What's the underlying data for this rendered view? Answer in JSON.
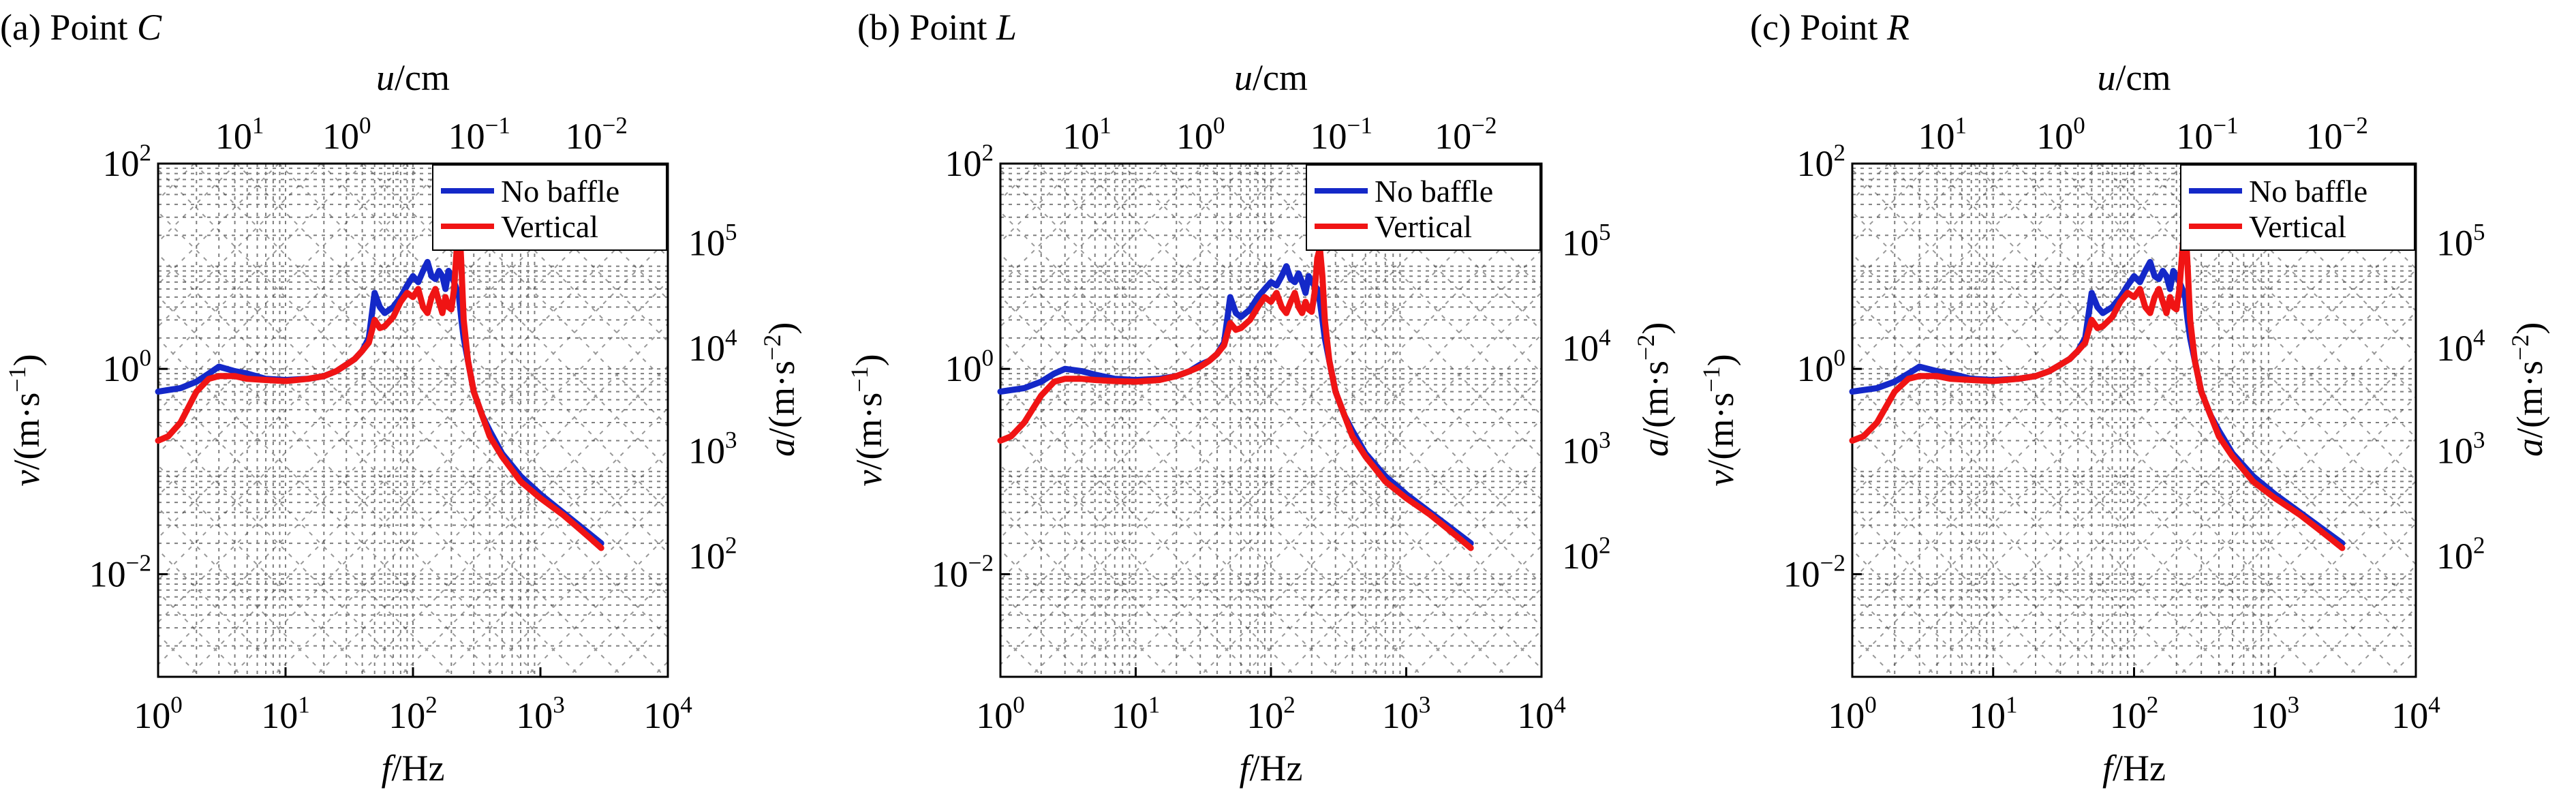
{
  "chart_data": [
    {
      "type": "line",
      "panel_label": "(a) Point ",
      "panel_point": "C",
      "xlabel_var": "f",
      "xlabel_unit": "/Hz",
      "ylabel_var": "v",
      "ylabel_unit": "/(m·s",
      "ylabel_exp": "−1",
      "ylabel_close": ")",
      "y2label_var": "a",
      "y2label_unit": "/(m·s",
      "y2label_exp": "−2",
      "y2label_close": ")",
      "x2label_var": "u",
      "x2label_unit": "/cm",
      "x_scale": "log",
      "y_scale": "log",
      "xlim": [
        1,
        10000
      ],
      "ylim": [
        0.001,
        100
      ],
      "x_ticks": [
        "10^0",
        "10^1",
        "10^2",
        "10^3",
        "10^4"
      ],
      "y_ticks": [
        "10^2",
        "10^0",
        "10^-2"
      ],
      "x2_ticks": [
        "10^1",
        "10^0",
        "10^-1",
        "10^-2"
      ],
      "y2_ticks": [
        "10^5",
        "10^4",
        "10^3",
        "10^2"
      ],
      "grid": true,
      "legend_position": "top-right",
      "series": [
        {
          "name": "No baffle",
          "color": "#1428c8",
          "x": [
            1,
            1.5,
            2,
            2.5,
            3,
            4,
            5,
            7,
            10,
            15,
            20,
            25,
            30,
            35,
            40,
            45,
            50,
            55,
            60,
            70,
            80,
            90,
            100,
            110,
            120,
            130,
            140,
            150,
            160,
            170,
            180,
            190,
            200,
            210,
            220,
            230,
            240,
            250,
            270,
            300,
            350,
            400,
            500,
            700,
            1000,
            1500,
            2000,
            2500,
            3000
          ],
          "y": [
            0.6,
            0.65,
            0.75,
            0.9,
            1.05,
            0.95,
            0.9,
            0.8,
            0.78,
            0.8,
            0.85,
            0.95,
            1.1,
            1.25,
            1.5,
            2.0,
            5.5,
            4.0,
            3.5,
            4.0,
            5.0,
            6.5,
            8.0,
            7.0,
            9.0,
            11.0,
            8.0,
            7.5,
            9.0,
            8.0,
            6.0,
            9.0,
            8.0,
            7.0,
            6.0,
            5.0,
            3.0,
            2.0,
            1.2,
            0.6,
            0.35,
            0.25,
            0.15,
            0.09,
            0.06,
            0.04,
            0.03,
            0.024,
            0.02
          ]
        },
        {
          "name": "Vertical",
          "color": "#f01414",
          "x": [
            1,
            1.2,
            1.5,
            2,
            2.5,
            3,
            4,
            5,
            7,
            10,
            15,
            20,
            25,
            30,
            35,
            40,
            45,
            50,
            55,
            60,
            70,
            80,
            90,
            100,
            110,
            120,
            130,
            140,
            150,
            160,
            170,
            180,
            190,
            200,
            210,
            220,
            230,
            240,
            250,
            270,
            300,
            350,
            400,
            500,
            700,
            1000,
            1500,
            2000,
            2500,
            3000
          ],
          "y": [
            0.2,
            0.22,
            0.3,
            0.6,
            0.8,
            0.85,
            0.85,
            0.8,
            0.78,
            0.76,
            0.8,
            0.85,
            0.95,
            1.1,
            1.25,
            1.5,
            1.8,
            3.0,
            2.5,
            2.6,
            3.2,
            4.5,
            5.5,
            5.0,
            6.0,
            4.0,
            3.5,
            5.0,
            6.0,
            4.5,
            3.5,
            5.0,
            4.0,
            3.8,
            6.0,
            14.0,
            30.0,
            10.0,
            3.0,
            1.2,
            0.6,
            0.35,
            0.22,
            0.14,
            0.08,
            0.055,
            0.038,
            0.028,
            0.022,
            0.018
          ]
        }
      ]
    },
    {
      "type": "line",
      "panel_label": "(b) Point ",
      "panel_point": "L",
      "xlabel_var": "f",
      "xlabel_unit": "/Hz",
      "ylabel_var": "v",
      "ylabel_unit": "/(m·s",
      "ylabel_exp": "−1",
      "ylabel_close": ")",
      "y2label_var": "a",
      "y2label_unit": "/(m·s",
      "y2label_exp": "−2",
      "y2label_close": ")",
      "x2label_var": "u",
      "x2label_unit": "/cm",
      "x_scale": "log",
      "y_scale": "log",
      "xlim": [
        1,
        10000
      ],
      "ylim": [
        0.001,
        100
      ],
      "x_ticks": [
        "10^0",
        "10^1",
        "10^2",
        "10^3",
        "10^4"
      ],
      "y_ticks": [
        "10^2",
        "10^0",
        "10^-2"
      ],
      "x2_ticks": [
        "10^1",
        "10^0",
        "10^-1",
        "10^-2"
      ],
      "y2_ticks": [
        "10^5",
        "10^4",
        "10^3",
        "10^2"
      ],
      "grid": true,
      "legend_position": "top-right",
      "series": [
        {
          "name": "No baffle",
          "color": "#1428c8",
          "x": [
            1,
            1.5,
            2,
            2.5,
            3,
            4,
            5,
            7,
            10,
            15,
            20,
            25,
            30,
            35,
            40,
            45,
            50,
            55,
            60,
            70,
            80,
            90,
            100,
            110,
            120,
            130,
            140,
            150,
            160,
            170,
            180,
            190,
            200,
            210,
            220,
            230,
            240,
            250,
            270,
            300,
            350,
            400,
            500,
            700,
            1000,
            1500,
            2000,
            2500,
            3000
          ],
          "y": [
            0.6,
            0.65,
            0.75,
            0.9,
            1.0,
            0.95,
            0.88,
            0.8,
            0.78,
            0.8,
            0.85,
            0.95,
            1.1,
            1.2,
            1.4,
            1.8,
            5.0,
            3.5,
            3.2,
            3.8,
            5.0,
            6.0,
            7.0,
            6.5,
            8.0,
            10.0,
            7.5,
            7.0,
            8.5,
            7.0,
            5.5,
            8.0,
            7.0,
            6.5,
            6.0,
            4.5,
            3.0,
            2.0,
            1.2,
            0.6,
            0.35,
            0.25,
            0.15,
            0.09,
            0.06,
            0.04,
            0.03,
            0.024,
            0.02
          ]
        },
        {
          "name": "Vertical",
          "color": "#f01414",
          "x": [
            1,
            1.2,
            1.5,
            2,
            2.5,
            3,
            4,
            5,
            7,
            10,
            15,
            20,
            25,
            30,
            35,
            40,
            45,
            50,
            55,
            60,
            70,
            80,
            90,
            100,
            110,
            120,
            130,
            140,
            150,
            160,
            170,
            180,
            190,
            200,
            210,
            220,
            230,
            240,
            250,
            270,
            300,
            350,
            400,
            500,
            700,
            1000,
            1500,
            2000,
            2500,
            3000
          ],
          "y": [
            0.2,
            0.22,
            0.3,
            0.55,
            0.75,
            0.8,
            0.8,
            0.78,
            0.76,
            0.75,
            0.78,
            0.85,
            0.95,
            1.05,
            1.2,
            1.4,
            1.7,
            2.8,
            2.4,
            2.5,
            3.0,
            4.0,
            5.0,
            4.5,
            5.5,
            4.0,
            3.5,
            4.5,
            5.5,
            4.0,
            3.5,
            4.5,
            3.8,
            3.6,
            5.5,
            12.0,
            15.0,
            8.0,
            3.0,
            1.2,
            0.6,
            0.35,
            0.22,
            0.14,
            0.08,
            0.055,
            0.038,
            0.028,
            0.022,
            0.018
          ]
        }
      ]
    },
    {
      "type": "line",
      "panel_label": "(c) Point ",
      "panel_point": "R",
      "xlabel_var": "f",
      "xlabel_unit": "/Hz",
      "ylabel_var": "v",
      "ylabel_unit": "/(m·s",
      "ylabel_exp": "−1",
      "ylabel_close": ")",
      "y2label_var": "a",
      "y2label_unit": "/(m·s",
      "y2label_exp": "−2",
      "y2label_close": ")",
      "x2label_var": "u",
      "x2label_unit": "/cm",
      "x_scale": "log",
      "y_scale": "log",
      "xlim": [
        1,
        10000
      ],
      "ylim": [
        0.001,
        100
      ],
      "x_ticks": [
        "10^0",
        "10^1",
        "10^2",
        "10^3",
        "10^4"
      ],
      "y_ticks": [
        "10^2",
        "10^0",
        "10^-2"
      ],
      "x2_ticks": [
        "10^1",
        "10^0",
        "10^-1",
        "10^-2"
      ],
      "y2_ticks": [
        "10^5",
        "10^4",
        "10^3",
        "10^2"
      ],
      "grid": true,
      "legend_position": "top-right",
      "series": [
        {
          "name": "No baffle",
          "color": "#1428c8",
          "x": [
            1,
            1.5,
            2,
            2.5,
            3,
            4,
            5,
            7,
            10,
            15,
            20,
            25,
            30,
            35,
            40,
            45,
            50,
            55,
            60,
            70,
            80,
            90,
            100,
            110,
            120,
            130,
            140,
            150,
            160,
            170,
            180,
            190,
            200,
            210,
            220,
            230,
            240,
            250,
            270,
            300,
            350,
            400,
            500,
            700,
            1000,
            1500,
            2000,
            2500,
            3000
          ],
          "y": [
            0.6,
            0.65,
            0.75,
            0.9,
            1.05,
            0.95,
            0.9,
            0.8,
            0.78,
            0.8,
            0.85,
            0.95,
            1.1,
            1.25,
            1.5,
            2.0,
            5.5,
            4.0,
            3.5,
            4.0,
            5.0,
            6.5,
            8.0,
            7.0,
            9.0,
            11.0,
            8.0,
            7.5,
            9.0,
            8.0,
            6.0,
            9.0,
            8.0,
            7.0,
            6.0,
            5.0,
            3.0,
            2.0,
            1.2,
            0.6,
            0.35,
            0.25,
            0.15,
            0.09,
            0.06,
            0.04,
            0.03,
            0.024,
            0.02
          ]
        },
        {
          "name": "Vertical",
          "color": "#f01414",
          "x": [
            1,
            1.2,
            1.5,
            2,
            2.5,
            3,
            4,
            5,
            7,
            10,
            15,
            20,
            25,
            30,
            35,
            40,
            45,
            50,
            55,
            60,
            70,
            80,
            90,
            100,
            110,
            120,
            130,
            140,
            150,
            160,
            170,
            180,
            190,
            200,
            210,
            220,
            230,
            240,
            250,
            270,
            300,
            350,
            400,
            500,
            700,
            1000,
            1500,
            2000,
            2500,
            3000
          ],
          "y": [
            0.2,
            0.22,
            0.3,
            0.6,
            0.8,
            0.85,
            0.85,
            0.8,
            0.78,
            0.76,
            0.8,
            0.85,
            0.95,
            1.1,
            1.25,
            1.5,
            1.8,
            3.0,
            2.5,
            2.6,
            3.2,
            4.5,
            5.5,
            5.0,
            6.0,
            4.0,
            3.5,
            5.0,
            6.0,
            4.5,
            3.5,
            5.0,
            4.0,
            3.8,
            6.0,
            14.0,
            30.0,
            10.0,
            3.0,
            1.2,
            0.6,
            0.35,
            0.22,
            0.14,
            0.08,
            0.055,
            0.038,
            0.028,
            0.022,
            0.018
          ]
        }
      ]
    }
  ]
}
